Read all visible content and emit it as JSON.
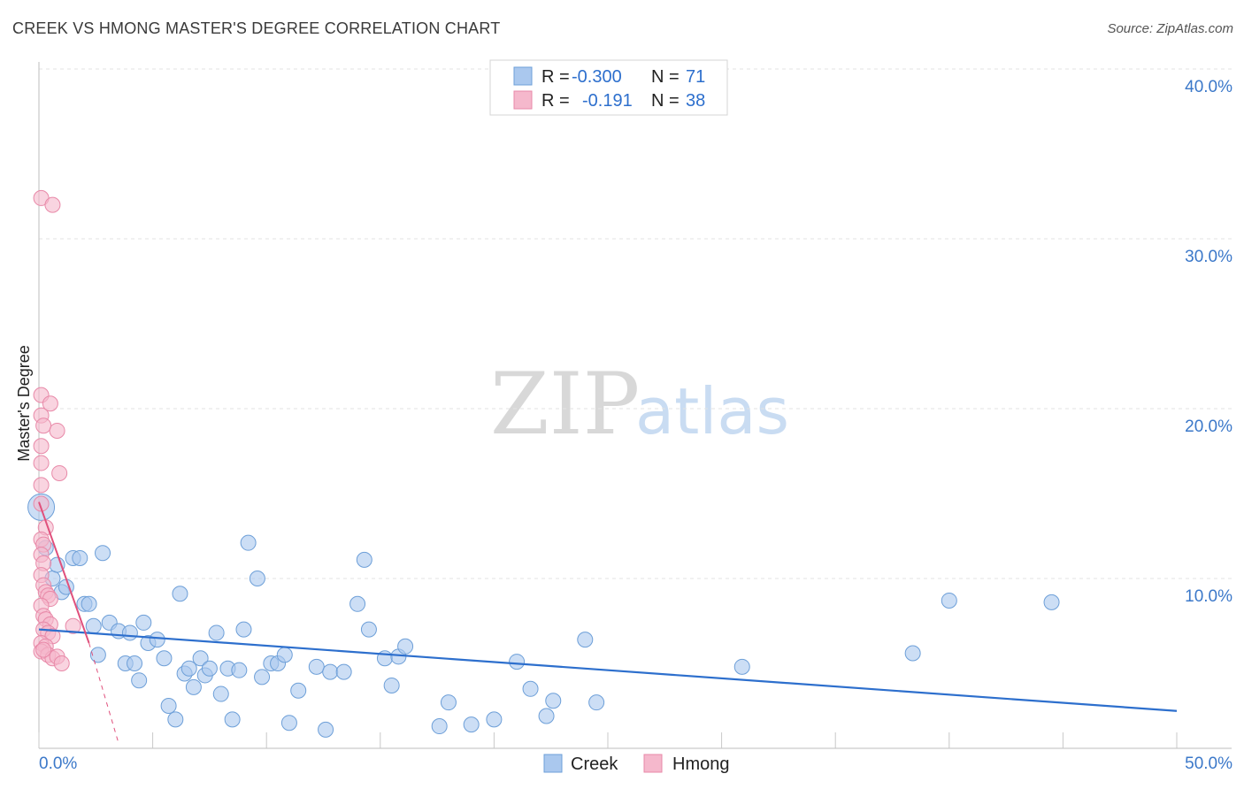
{
  "header": {
    "title": "CREEK VS HMONG MASTER'S DEGREE CORRELATION CHART",
    "source": "Source: ZipAtlas.com"
  },
  "watermark": {
    "zip": "ZIP",
    "atlas": "atlas"
  },
  "legend": {
    "rows": [
      {
        "r_label": "R =",
        "r_value": "-0.300",
        "n_label": "N =",
        "n_value": "71",
        "color": "#aac8ee"
      },
      {
        "r_label": "R =",
        "r_value": "-0.191",
        "n_label": "N =",
        "n_value": "38",
        "color": "#f5b8cc"
      }
    ]
  },
  "chart_data": {
    "type": "scatter",
    "title": "CREEK VS HMONG MASTER'S DEGREE CORRELATION CHART",
    "xlabel": "",
    "ylabel": "Master's Degree",
    "xlim": [
      0,
      50
    ],
    "ylim": [
      0,
      40
    ],
    "x_tick_labels": [
      "0.0%",
      "50.0%"
    ],
    "y_tick_labels": [
      "10.0%",
      "20.0%",
      "30.0%",
      "40.0%"
    ],
    "y_ticks": [
      10,
      20,
      30,
      40
    ],
    "grid": true,
    "series": [
      {
        "name": "Creek",
        "color": "#aac8ee",
        "stroke": "#6d9fd8",
        "r": -0.3,
        "n": 71,
        "trend": {
          "x0": 0,
          "y0": 7.0,
          "x1": 50,
          "y1": 2.2,
          "color": "#2d6fcd"
        },
        "points": [
          [
            0.1,
            14.2
          ],
          [
            0.3,
            11.8
          ],
          [
            0.6,
            10.0
          ],
          [
            0.8,
            10.8
          ],
          [
            1.0,
            9.2
          ],
          [
            1.2,
            9.5
          ],
          [
            1.5,
            11.2
          ],
          [
            1.8,
            11.2
          ],
          [
            2.0,
            8.5
          ],
          [
            2.2,
            8.5
          ],
          [
            2.4,
            7.2
          ],
          [
            2.6,
            5.5
          ],
          [
            2.8,
            11.5
          ],
          [
            3.1,
            7.4
          ],
          [
            3.5,
            6.9
          ],
          [
            3.8,
            5.0
          ],
          [
            4.0,
            6.8
          ],
          [
            4.2,
            5.0
          ],
          [
            4.4,
            4.0
          ],
          [
            4.6,
            7.4
          ],
          [
            4.8,
            6.2
          ],
          [
            5.2,
            6.4
          ],
          [
            5.5,
            5.3
          ],
          [
            5.7,
            2.5
          ],
          [
            6.0,
            1.7
          ],
          [
            6.2,
            9.1
          ],
          [
            6.4,
            4.4
          ],
          [
            6.6,
            4.7
          ],
          [
            6.8,
            3.6
          ],
          [
            7.1,
            5.3
          ],
          [
            7.3,
            4.3
          ],
          [
            7.5,
            4.7
          ],
          [
            7.8,
            6.8
          ],
          [
            8.0,
            3.2
          ],
          [
            8.3,
            4.7
          ],
          [
            8.5,
            1.7
          ],
          [
            8.8,
            4.6
          ],
          [
            9.0,
            7.0
          ],
          [
            9.2,
            12.1
          ],
          [
            9.6,
            10.0
          ],
          [
            9.8,
            4.2
          ],
          [
            10.2,
            5.0
          ],
          [
            10.5,
            5.0
          ],
          [
            10.8,
            5.5
          ],
          [
            11.0,
            1.5
          ],
          [
            11.4,
            3.4
          ],
          [
            12.2,
            4.8
          ],
          [
            12.6,
            1.1
          ],
          [
            12.8,
            4.5
          ],
          [
            13.4,
            4.5
          ],
          [
            14.0,
            8.5
          ],
          [
            14.3,
            11.1
          ],
          [
            14.5,
            7.0
          ],
          [
            15.2,
            5.3
          ],
          [
            15.5,
            3.7
          ],
          [
            15.8,
            5.4
          ],
          [
            16.1,
            6.0
          ],
          [
            17.6,
            1.3
          ],
          [
            18.0,
            2.7
          ],
          [
            19.0,
            1.4
          ],
          [
            20.0,
            1.7
          ],
          [
            21.0,
            5.1
          ],
          [
            21.6,
            3.5
          ],
          [
            22.3,
            1.9
          ],
          [
            22.6,
            2.8
          ],
          [
            24.0,
            6.4
          ],
          [
            24.5,
            2.7
          ],
          [
            30.9,
            4.8
          ],
          [
            38.4,
            5.6
          ],
          [
            40.0,
            8.7
          ],
          [
            44.5,
            8.6
          ]
        ]
      },
      {
        "name": "Hmong",
        "color": "#f5b8cc",
        "stroke": "#e889a8",
        "r": -0.191,
        "n": 38,
        "trend": {
          "x0": 0,
          "y0": 14.5,
          "x1": 2.2,
          "y1": 6.2,
          "x2": 3.5,
          "y2": 0.3,
          "color": "#e0507c"
        },
        "points": [
          [
            0.1,
            32.4
          ],
          [
            0.6,
            32.0
          ],
          [
            0.1,
            20.8
          ],
          [
            0.5,
            20.3
          ],
          [
            0.1,
            19.6
          ],
          [
            0.2,
            19.0
          ],
          [
            0.8,
            18.7
          ],
          [
            0.1,
            17.8
          ],
          [
            0.1,
            16.8
          ],
          [
            0.9,
            16.2
          ],
          [
            0.1,
            15.5
          ],
          [
            0.1,
            14.4
          ],
          [
            0.3,
            13.0
          ],
          [
            0.1,
            12.3
          ],
          [
            0.2,
            12.0
          ],
          [
            0.1,
            11.4
          ],
          [
            0.2,
            10.9
          ],
          [
            0.1,
            10.2
          ],
          [
            0.2,
            9.6
          ],
          [
            0.3,
            9.2
          ],
          [
            0.4,
            9.0
          ],
          [
            0.5,
            8.8
          ],
          [
            0.1,
            8.4
          ],
          [
            0.2,
            7.8
          ],
          [
            0.3,
            7.6
          ],
          [
            0.5,
            7.3
          ],
          [
            0.2,
            7.0
          ],
          [
            0.4,
            6.8
          ],
          [
            0.6,
            6.6
          ],
          [
            0.1,
            6.2
          ],
          [
            0.3,
            6.0
          ],
          [
            0.1,
            5.7
          ],
          [
            0.4,
            5.5
          ],
          [
            0.6,
            5.3
          ],
          [
            0.2,
            5.8
          ],
          [
            0.8,
            5.4
          ],
          [
            1.0,
            5.0
          ],
          [
            1.5,
            7.2
          ]
        ]
      }
    ]
  },
  "bottom_legend": {
    "items": [
      "Creek",
      "Hmong"
    ]
  }
}
